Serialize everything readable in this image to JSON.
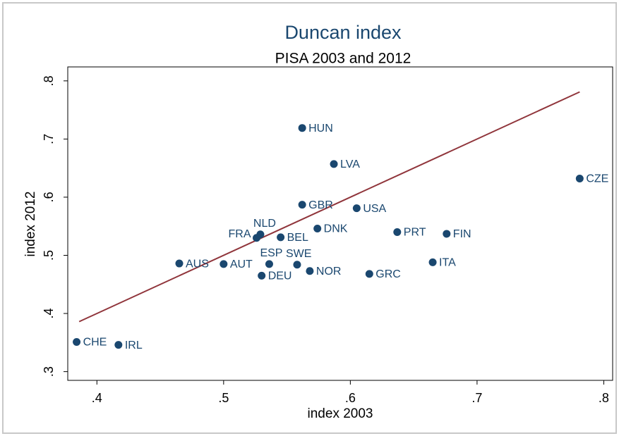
{
  "chart_data": {
    "type": "scatter",
    "title": "Duncan index",
    "subtitle": "PISA 2003 and 2012",
    "x_label": "index 2003",
    "y_label": "index 2012",
    "points": {
      "color": "#1a476f",
      "labels": [
        "CHE",
        "IRL",
        "AUS",
        "AUT",
        "FRA",
        "NLD",
        "BEL",
        "ESP",
        "DEU",
        "SWE",
        "NOR",
        "DNK",
        "GBR",
        "HUN",
        "LVA",
        "USA",
        "GRC",
        "PRT",
        "FIN",
        "ITA",
        "CZE"
      ],
      "x": [
        0.384,
        0.417,
        0.465,
        0.5,
        0.526,
        0.529,
        0.545,
        0.536,
        0.53,
        0.558,
        0.568,
        0.574,
        0.562,
        0.562,
        0.587,
        0.605,
        0.615,
        0.637,
        0.676,
        0.665,
        0.781
      ],
      "y": [
        0.351,
        0.346,
        0.486,
        0.485,
        0.53,
        0.536,
        0.531,
        0.485,
        0.465,
        0.484,
        0.473,
        0.546,
        0.587,
        0.719,
        0.657,
        0.581,
        0.468,
        0.54,
        0.537,
        0.488,
        0.632
      ]
    },
    "fit_line": {
      "color": "#90353b",
      "x": [
        0.386,
        0.781
      ],
      "y": [
        0.386,
        0.781
      ]
    },
    "xlim": [
      0.377,
      0.807
    ],
    "ylim": [
      0.285,
      0.824
    ],
    "xticks": [
      {
        "value": 0.4,
        "label": ".4"
      },
      {
        "value": 0.5,
        "label": ".5"
      },
      {
        "value": 0.6,
        "label": ".6"
      },
      {
        "value": 0.7,
        "label": ".7"
      },
      {
        "value": 0.8,
        "label": ".8"
      }
    ],
    "yticks": [
      {
        "value": 0.3,
        "label": ".3"
      },
      {
        "value": 0.4,
        "label": ".4"
      },
      {
        "value": 0.5,
        "label": ".5"
      },
      {
        "value": 0.6,
        "label": ".6"
      },
      {
        "value": 0.7,
        "label": ".7"
      },
      {
        "value": 0.8,
        "label": ".8"
      }
    ],
    "grid": false
  }
}
